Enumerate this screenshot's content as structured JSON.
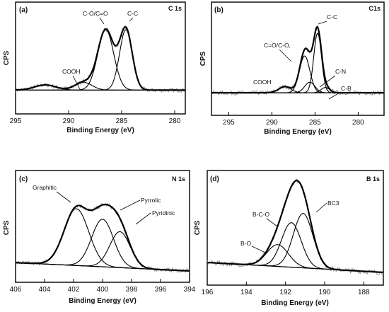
{
  "chart_data": [
    {
      "type": "line",
      "panel": "(a)",
      "core_level": "C 1s",
      "xlabel": "Binding Energy (eV)",
      "ylabel": "CPS",
      "xlim": [
        295,
        279
      ],
      "x_reversed": true,
      "x_ticks": [
        "295",
        "290",
        "285",
        "280"
      ],
      "y_ticks": [],
      "grid": false,
      "baseline": 0.12,
      "peaks": [
        {
          "label": "COOH",
          "center": 288.6,
          "height": 0.09,
          "width": 0.8
        },
        {
          "label": "C-O/C=O",
          "center": 286.5,
          "height": 0.7,
          "width": 0.75
        },
        {
          "label": "C-C",
          "center": 284.6,
          "height": 0.7,
          "width": 0.6
        },
        {
          "label": "",
          "center": 292.2,
          "height": 0.06,
          "width": 1.0
        }
      ]
    },
    {
      "type": "line",
      "panel": "(b)",
      "core_level": "C1s",
      "xlabel": "Binding Energy (eV)",
      "ylabel": "CPS",
      "xlim": [
        297,
        277
      ],
      "x_reversed": true,
      "x_ticks": [
        "295",
        "290",
        "285",
        "280"
      ],
      "y_ticks": [],
      "grid": false,
      "baseline": 0.12,
      "peaks": [
        {
          "label": "COOH",
          "center": 288.5,
          "height": 0.07,
          "width": 0.7
        },
        {
          "label": "C=O/C-O,",
          "center": 286.2,
          "height": 0.42,
          "width": 0.6
        },
        {
          "label": "C-N",
          "center": 285.6,
          "height": 0.12,
          "width": 0.6
        },
        {
          "label": "C-C",
          "center": 284.7,
          "height": 0.68,
          "width": 0.45
        },
        {
          "label": "C-B",
          "center": 283.8,
          "height": 0.06,
          "width": 0.5
        }
      ]
    },
    {
      "type": "line",
      "panel": "(c)",
      "core_level": "N 1s",
      "xlabel": "Binding Energy (eV)",
      "ylabel": "CPS",
      "xlim": [
        406,
        394
      ],
      "x_reversed": true,
      "x_ticks": [
        "406",
        "404",
        "402",
        "400",
        "398",
        "396",
        "394"
      ],
      "y_ticks": [],
      "grid": false,
      "baseline_left": 0.1,
      "baseline_right": 0.0,
      "peaks": [
        {
          "label": "Graphitic",
          "center": 401.8,
          "height": 0.68,
          "width": 0.85
        },
        {
          "label": "Pyrrolic",
          "center": 400.0,
          "height": 0.57,
          "width": 0.75
        },
        {
          "label": "Pyridinic",
          "center": 398.8,
          "height": 0.43,
          "width": 0.7
        }
      ]
    },
    {
      "type": "line",
      "panel": "(d)",
      "core_level": "B 1s",
      "xlabel": "Binding Energy (eV)",
      "ylabel": "CPS",
      "xlim": [
        196,
        187
      ],
      "x_reversed": true,
      "x_ticks": [
        "196",
        "194",
        "192",
        "190",
        "188"
      ],
      "y_ticks": [],
      "grid": false,
      "baseline_left": 0.1,
      "baseline_right": 0.0,
      "peaks": [
        {
          "label": "B-O",
          "center": 192.4,
          "height": 0.22,
          "width": 0.55
        },
        {
          "label": "B-C-O",
          "center": 191.7,
          "height": 0.45,
          "width": 0.5
        },
        {
          "label": "BC3",
          "center": 191.1,
          "height": 0.55,
          "width": 0.5
        }
      ]
    }
  ]
}
